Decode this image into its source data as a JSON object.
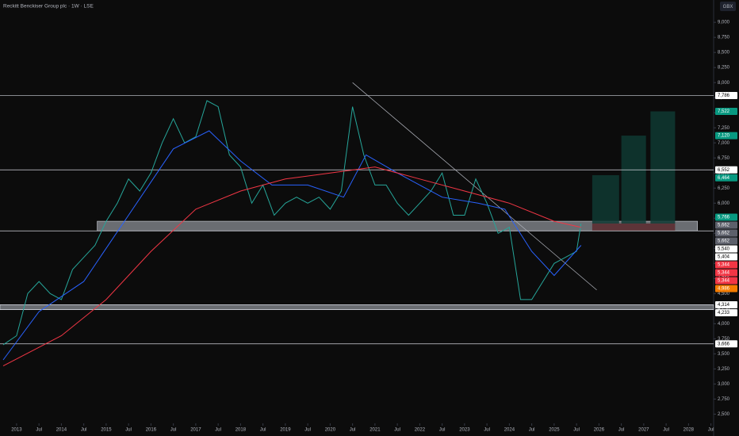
{
  "chart_data": {
    "type": "line",
    "title": "Reckitt Benckiser Group plc · 1W · LSE",
    "currency": "GBX",
    "xlim": [
      2012.63,
      2028.56
    ],
    "ylim": [
      2400,
      9370
    ],
    "grid": false,
    "xticks": [
      2013,
      {
        "value": 2013.5,
        "label": "Jul"
      },
      2014,
      {
        "value": 2014.5,
        "label": "Jul"
      },
      2015,
      {
        "value": 2015.5,
        "label": "Jul"
      },
      2016,
      {
        "value": 2016.5,
        "label": "Jul"
      },
      2017,
      {
        "value": 2017.5,
        "label": "Jul"
      },
      2018,
      {
        "value": 2018.5,
        "label": "Jul"
      },
      2019,
      {
        "value": 2019.5,
        "label": "Jul"
      },
      2020,
      {
        "value": 2020.5,
        "label": "Jul"
      },
      2021,
      {
        "value": 2021.5,
        "label": "Jul"
      },
      2022,
      {
        "value": 2022.5,
        "label": "Jul"
      },
      2023,
      {
        "value": 2023.5,
        "label": "Jul"
      },
      2024,
      {
        "value": 2024.5,
        "label": "Jul"
      },
      2025,
      {
        "value": 2025.5,
        "label": "Jul"
      },
      2026,
      {
        "value": 2026.5,
        "label": "Jul"
      },
      2027,
      {
        "value": 2027.5,
        "label": "Jul"
      },
      2028,
      {
        "value": 2028.5,
        "label": "Jul"
      }
    ],
    "yticks": [
      {
        "value": 2500,
        "label": "2,500"
      },
      {
        "value": 2750,
        "label": "2,750"
      },
      {
        "value": 3000,
        "label": "3,000"
      },
      {
        "value": 3250,
        "label": "3,250"
      },
      {
        "value": 3500,
        "label": "3,500"
      },
      {
        "value": 3750,
        "label": "3,750"
      },
      {
        "value": 4000,
        "label": "4,000"
      },
      {
        "value": 4250,
        "label": "4,250"
      },
      {
        "value": 4500,
        "label": "4,500"
      },
      {
        "value": 4750,
        "label": "4,750"
      },
      {
        "value": 5000,
        "label": "5,000"
      },
      {
        "value": 5250,
        "label": "5,250"
      },
      {
        "value": 5500,
        "label": "5,500"
      },
      {
        "value": 5750,
        "label": "5,750"
      },
      {
        "value": 6000,
        "label": "6,000"
      },
      {
        "value": 6250,
        "label": "6,250"
      },
      {
        "value": 6500,
        "label": "6,500"
      },
      {
        "value": 6750,
        "label": "6,750"
      },
      {
        "value": 7000,
        "label": "7,000"
      },
      {
        "value": 7250,
        "label": "7,250"
      },
      {
        "value": 7500,
        "label": "7,500"
      },
      {
        "value": 7750,
        "label": "7,750"
      },
      {
        "value": 8000,
        "label": "8,000"
      },
      {
        "value": 8250,
        "label": "8,250"
      },
      {
        "value": 8500,
        "label": "8,500"
      },
      {
        "value": 8750,
        "label": "8,750"
      },
      {
        "value": 9000,
        "label": "9,000"
      }
    ],
    "series": [
      {
        "color": "#26a69a",
        "x": [
          2012.7,
          2013.0,
          2013.25,
          2013.5,
          2013.75,
          2014.0,
          2014.25,
          2014.5,
          2014.75,
          2015.0,
          2015.25,
          2015.5,
          2015.75,
          2016.0,
          2016.25,
          2016.5,
          2016.75,
          2017.0,
          2017.25,
          2017.5,
          2017.75,
          2018.0,
          2018.25,
          2018.5,
          2018.75,
          2019.0,
          2019.25,
          2019.5,
          2019.75,
          2020.0,
          2020.25,
          2020.5,
          2020.75,
          2021.0,
          2021.25,
          2021.5,
          2021.75,
          2022.0,
          2022.25,
          2022.5,
          2022.75,
          2023.0,
          2023.25,
          2023.5,
          2023.75,
          2024.0,
          2024.25,
          2024.5,
          2024.75,
          2025.0,
          2025.25,
          2025.5,
          2025.6
        ],
        "values": [
          3650,
          3800,
          4500,
          4700,
          4500,
          4400,
          4900,
          5100,
          5300,
          5700,
          6000,
          6400,
          6200,
          6500,
          7000,
          7400,
          7000,
          7100,
          7700,
          7600,
          6800,
          6600,
          6000,
          6300,
          5800,
          6000,
          6100,
          6000,
          6100,
          5900,
          6200,
          7600,
          6800,
          6300,
          6300,
          6000,
          5800,
          6000,
          6200,
          6500,
          5800,
          5800,
          6400,
          6000,
          5500,
          5600,
          4400,
          4400,
          4700,
          5000,
          5100,
          5200,
          5660
        ]
      },
      {
        "color": "#2962ff",
        "x": [
          2012.7,
          2013.5,
          2014.5,
          2015.5,
          2016.5,
          2017.3,
          2018.0,
          2018.7,
          2019.5,
          2020.3,
          2020.8,
          2021.5,
          2022.5,
          2023.3,
          2023.9,
          2024.5,
          2025.0,
          2025.6
        ],
        "values": [
          3400,
          4200,
          4700,
          5800,
          6900,
          7200,
          6700,
          6300,
          6300,
          6100,
          6800,
          6500,
          6100,
          6000,
          5900,
          5200,
          4800,
          5300
        ]
      },
      {
        "color": "#f23645",
        "x": [
          2012.7,
          2014.0,
          2015.0,
          2016.0,
          2017.0,
          2018.0,
          2019.0,
          2020.0,
          2021.0,
          2022.0,
          2023.0,
          2024.0,
          2025.0,
          2025.6
        ],
        "values": [
          3300,
          3800,
          4400,
          5200,
          5900,
          6200,
          6400,
          6500,
          6600,
          6400,
          6200,
          6000,
          5700,
          5600
        ]
      }
    ],
    "trendline": {
      "x": [
        2020.5,
        2025.95
      ],
      "y": [
        8000,
        4560
      ]
    },
    "levels": [
      7786,
      6552,
      5540,
      4314,
      4233,
      3666
    ],
    "zones": [
      {
        "x": [
          2014.8,
          2028.2
        ],
        "y": [
          5540,
          5700
        ]
      },
      {
        "x": [
          2012.63,
          2028.56
        ],
        "y": [
          4233,
          4314
        ]
      }
    ],
    "boxes": [
      {
        "x": [
          2025.85,
          2026.45
        ],
        "y": [
          5662,
          6464
        ],
        "color": "#0f3a33"
      },
      {
        "x": [
          2026.5,
          2027.05
        ],
        "y": [
          5662,
          7120
        ],
        "color": "#0f3a33"
      },
      {
        "x": [
          2027.15,
          2027.7
        ],
        "y": [
          5662,
          7522
        ],
        "color": "#0f3a33"
      },
      {
        "x": [
          2025.85,
          2027.7
        ],
        "y": [
          5540,
          5662
        ],
        "color": "#5a2a2e"
      }
    ],
    "price_labels": [
      {
        "value": 7786,
        "label": "7,786",
        "color": "#ffffff"
      },
      {
        "value": 7522,
        "label": "7,522",
        "color": "#089981"
      },
      {
        "value": 7120,
        "label": "7,120",
        "color": "#089981"
      },
      {
        "value": 6552,
        "label": "6,552",
        "color": "#ffffff"
      },
      {
        "value": 6464,
        "label": "6,464",
        "color": "#089981"
      },
      {
        "value": 5766,
        "label": "5,766",
        "color": "#089981"
      },
      {
        "value": 5662,
        "label": "5,662",
        "color": "#5d606b"
      },
      {
        "value": 5662,
        "label": "5,662",
        "color": "#5d606b"
      },
      {
        "value": 5662,
        "label": "5,662",
        "color": "#5d606b"
      },
      {
        "value": 5540,
        "label": "5,540",
        "color": "#ffffff"
      },
      {
        "value": 5404,
        "label": "5,404",
        "color": "#ffffff"
      },
      {
        "value": 5344,
        "label": "5,344",
        "color": "#f23645"
      },
      {
        "value": 5344,
        "label": "5,344",
        "color": "#f23645"
      },
      {
        "value": 5344,
        "label": "5,344",
        "color": "#f23645"
      },
      {
        "value": 4986,
        "label": "4,986",
        "color": "#f57c00"
      },
      {
        "value": 4314,
        "label": "4,314",
        "color": "#ffffff"
      },
      {
        "value": 4233,
        "label": "4,233",
        "color": "#ffffff"
      },
      {
        "value": 3666,
        "label": "3,666",
        "color": "#ffffff"
      }
    ]
  }
}
